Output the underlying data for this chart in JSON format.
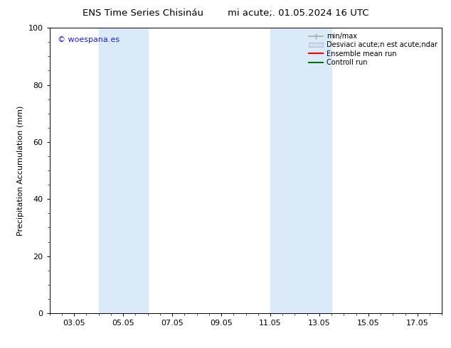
{
  "title_left": "ENS Time Series Chisináu",
  "title_right": "mi acute;. 01.05.2024 16 UTC",
  "ylabel": "Precipitation Accumulation (mm)",
  "ylim": [
    0,
    100
  ],
  "yticks": [
    0,
    20,
    40,
    60,
    80,
    100
  ],
  "xlim": [
    2.0,
    18.0
  ],
  "xtick_positions": [
    3,
    5,
    7,
    9,
    11,
    13,
    15,
    17
  ],
  "xtick_labels": [
    "03.05",
    "05.05",
    "07.05",
    "09.05",
    "11.05",
    "13.05",
    "15.05",
    "17.05"
  ],
  "shaded_regions": [
    {
      "xmin": 4.0,
      "xmax": 6.0
    },
    {
      "xmin": 11.0,
      "xmax": 13.5
    }
  ],
  "shaded_color": "#daeaf8",
  "watermark_text": "© woespana.es",
  "watermark_color": "#1a1aff",
  "legend_minmax_label": "min/max",
  "legend_std_label": "Desviaci acute;n est acute;ndar",
  "legend_ensemble_label": "Ensemble mean run",
  "legend_control_label": "Controll run",
  "legend_minmax_color": "#aaaaaa",
  "legend_std_color": "#cce0f0",
  "legend_ensemble_color": "#ff0000",
  "legend_control_color": "#007700",
  "background_color": "#ffffff",
  "title_fontsize": 9.5,
  "ylabel_fontsize": 8,
  "tick_fontsize": 8,
  "legend_fontsize": 7
}
